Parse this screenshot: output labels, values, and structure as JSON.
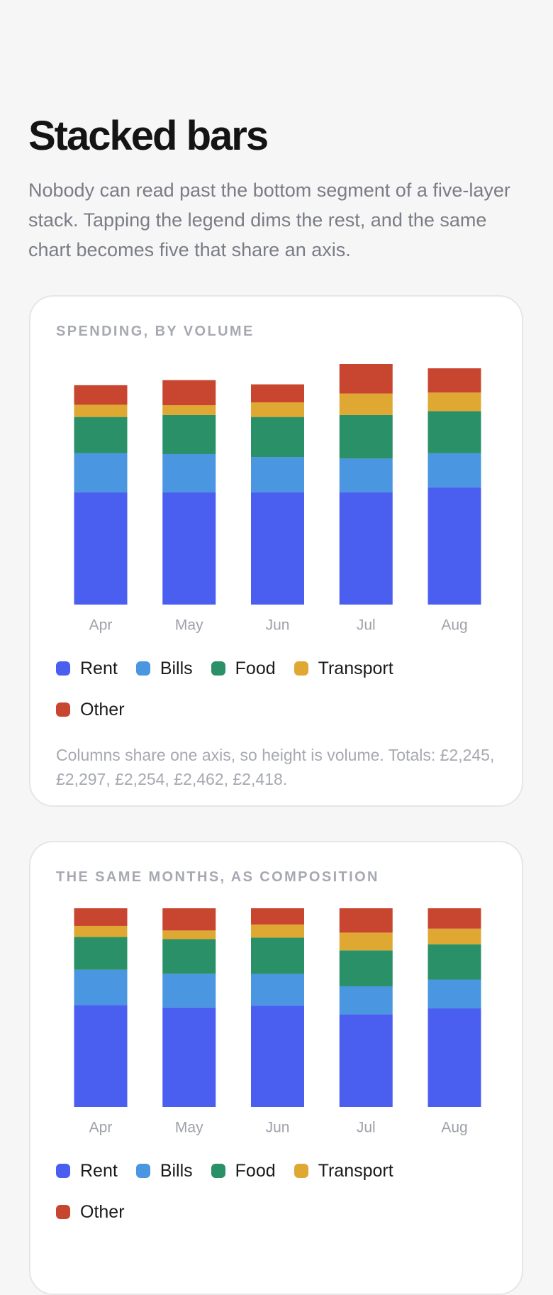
{
  "page": {
    "title": "Stacked bars",
    "description": "Nobody can read past the bottom segment of a five-layer stack. Tapping the legend dims the rest, and the same chart becomes five that share an axis."
  },
  "chart_data": [
    {
      "type": "bar",
      "stacked": "volume",
      "title": "SPENDING, BY VOLUME",
      "caption": "Columns share one axis, so height is volume. Totals: £2,245, £2,297, £2,254, £2,462, £2,418.",
      "categories": [
        "Apr",
        "May",
        "Jun",
        "Jul",
        "Aug"
      ],
      "series": [
        {
          "name": "Rent",
          "color": "#4a5ff0",
          "values": [
            1150,
            1150,
            1150,
            1150,
            1200
          ]
        },
        {
          "name": "Bills",
          "color": "#4a96e0",
          "values": [
            400,
            390,
            360,
            345,
            350
          ]
        },
        {
          "name": "Food",
          "color": "#2a9067",
          "values": [
            370,
            400,
            410,
            445,
            430
          ]
        },
        {
          "name": "Transport",
          "color": "#dea832",
          "values": [
            125,
            100,
            150,
            220,
            190
          ]
        },
        {
          "name": "Other",
          "color": "#c84530",
          "values": [
            200,
            257,
            184,
            302,
            248
          ]
        }
      ]
    },
    {
      "type": "bar",
      "stacked": "percent",
      "title": "THE SAME MONTHS, AS COMPOSITION",
      "categories": [
        "Apr",
        "May",
        "Jun",
        "Jul",
        "Aug"
      ],
      "series": [
        {
          "name": "Rent",
          "color": "#4a5ff0",
          "values": [
            1150,
            1150,
            1150,
            1150,
            1200
          ]
        },
        {
          "name": "Bills",
          "color": "#4a96e0",
          "values": [
            400,
            390,
            360,
            345,
            350
          ]
        },
        {
          "name": "Food",
          "color": "#2a9067",
          "values": [
            370,
            400,
            410,
            445,
            430
          ]
        },
        {
          "name": "Transport",
          "color": "#dea832",
          "values": [
            125,
            100,
            150,
            220,
            190
          ]
        },
        {
          "name": "Other",
          "color": "#c84530",
          "values": [
            200,
            257,
            184,
            302,
            248
          ]
        }
      ]
    }
  ]
}
